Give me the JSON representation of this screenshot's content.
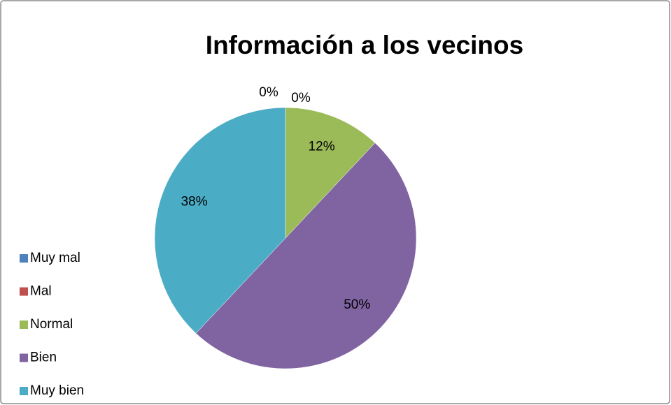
{
  "chart_data": {
    "type": "pie",
    "title": "Información a los vecinos",
    "categories": [
      "Muy mal",
      "Mal",
      "Normal",
      "Bien",
      "Muy bien"
    ],
    "values": [
      0,
      0,
      12,
      50,
      38
    ],
    "value_labels": [
      "0%",
      "0%",
      "12%",
      "50%",
      "38%"
    ],
    "colors": [
      "#4f81bd",
      "#c0504d",
      "#9bbb59",
      "#8064a2",
      "#4bacc6"
    ],
    "legend": "left"
  }
}
